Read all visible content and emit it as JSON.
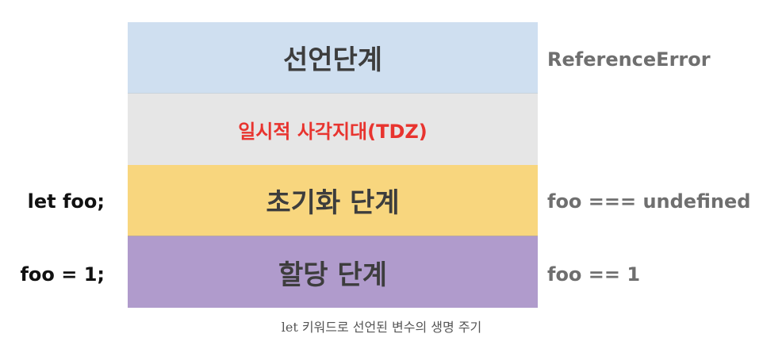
{
  "colors": {
    "declaration_band": "#cfdff0",
    "tdz_band": "#e6e6e6",
    "tdz_text": "#e8342f",
    "init_band": "#f8d67e",
    "assign_band": "#b09bcc"
  },
  "stages": {
    "declaration": "선언단계",
    "tdz": "일시적 사각지대(TDZ)",
    "initialization": "초기화 단계",
    "assignment": "할당 단계"
  },
  "code": {
    "declaration_stmt": "let foo;",
    "assignment_stmt": "foo = 1;"
  },
  "results": {
    "declaration": "ReferenceError",
    "initialization": "foo === undefined",
    "assignment": "foo == 1"
  },
  "caption": "let 키워드로 선언된 변수의 생명 주기"
}
